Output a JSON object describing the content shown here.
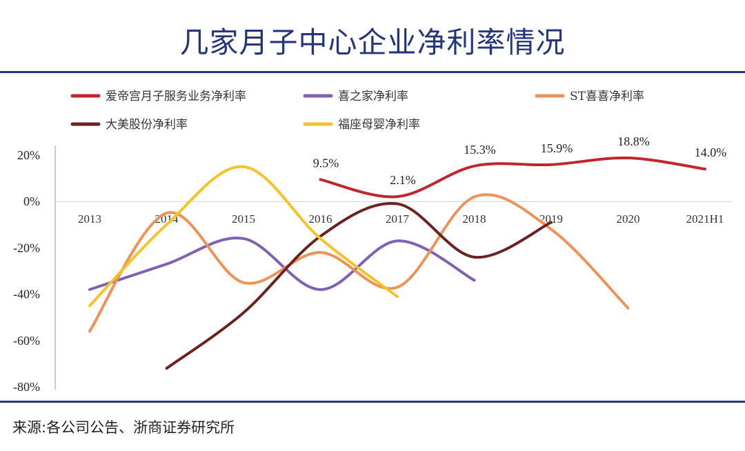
{
  "page": {
    "title": "几家月子中心企业净利率情况",
    "source": "来源:各公司公告、浙商证券研究所"
  },
  "chart_data": {
    "type": "line",
    "smooth": true,
    "categories": [
      "2013",
      "2014",
      "2015",
      "2016",
      "2017",
      "2018",
      "2019",
      "2020",
      "2021H1"
    ],
    "ylim": [
      -80,
      20
    ],
    "yticks": [
      20,
      0,
      -20,
      -40,
      -60,
      -80
    ],
    "ytick_labels": [
      "20%",
      "0%",
      "-20%",
      "-40%",
      "-60%",
      "-80%"
    ],
    "grid": false,
    "legend_position": "top",
    "series": [
      {
        "name": "爱帝宫月子服务业务净利率",
        "color": "#c0262d",
        "values": [
          null,
          null,
          null,
          9.5,
          2.1,
          15.3,
          15.9,
          18.8,
          14.0
        ],
        "labels": [
          null,
          null,
          null,
          "9.5%",
          "2.1%",
          "15.3%",
          "15.9%",
          "18.8%",
          "14.0%"
        ]
      },
      {
        "name": "喜之家净利率",
        "color": "#7e62b0",
        "values": [
          -38,
          -27,
          -16,
          -38,
          -17,
          -34,
          null,
          null,
          null
        ]
      },
      {
        "name": "ST喜喜净利率",
        "color": "#eb935a",
        "values": [
          -56,
          -5,
          -35,
          -22,
          -37,
          2,
          -12,
          -46,
          null
        ]
      },
      {
        "name": "大美股份净利率",
        "color": "#6b2321",
        "values": [
          null,
          -72,
          -48,
          -15,
          -1,
          -24,
          -9,
          null,
          null
        ]
      },
      {
        "name": "福座母婴净利率",
        "color": "#f6c22b",
        "values": [
          -45,
          -10,
          15,
          -16,
          -41,
          null,
          null,
          null,
          null
        ]
      }
    ]
  }
}
